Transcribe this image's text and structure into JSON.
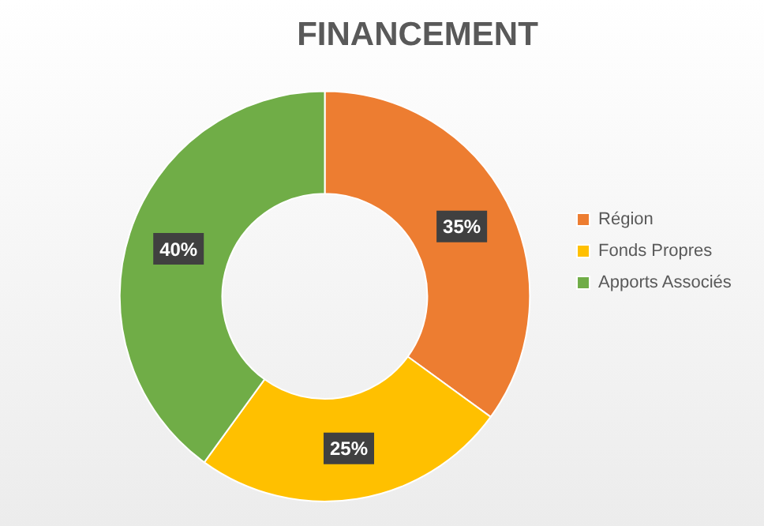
{
  "chart_data": {
    "type": "donut",
    "title": "FINANCEMENT",
    "categories": [
      "Région",
      "Fonds Propres",
      "Apports Associés"
    ],
    "values": [
      35,
      25,
      40
    ],
    "colors": [
      "#ed7d31",
      "#ffc000",
      "#70ad47"
    ],
    "value_labels": [
      "35%",
      "25%",
      "40%"
    ],
    "legend": "right"
  }
}
